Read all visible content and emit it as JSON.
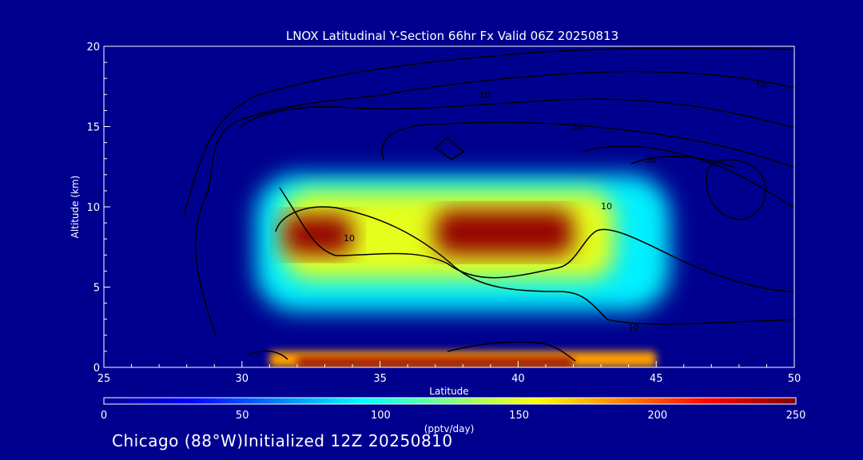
{
  "colors": {
    "background": "#00008f",
    "plot_field": "#00008f",
    "axis": "#ffffff",
    "contour": "#000000"
  },
  "chart_data": {
    "type": "heatmap",
    "title": "LNOX Latitudinal Y-Section 66hr  Fx Valid 06Z 20250813",
    "xlabel": "Latitude",
    "ylabel": "Altitude (km)",
    "xlim": [
      25,
      50
    ],
    "ylim": [
      0,
      20
    ],
    "x_ticks": [
      25,
      30,
      35,
      40,
      45,
      50
    ],
    "y_ticks": [
      0,
      5,
      10,
      15,
      20
    ],
    "colorbar": {
      "label": "(pptv/day)",
      "range": [
        0,
        250
      ],
      "ticks": [
        0,
        50,
        100,
        150,
        200,
        250
      ],
      "colormap": "jet"
    },
    "regions": [
      {
        "x_range": [
          30.5,
          45.5
        ],
        "y_range": [
          3.5,
          12.0
        ],
        "level": 90
      },
      {
        "x_range": [
          31.5,
          43.5
        ],
        "y_range": [
          5.5,
          11.0
        ],
        "level": 150
      },
      {
        "x_range": [
          31.5,
          34.0
        ],
        "y_range": [
          7.0,
          9.5
        ],
        "level": 245
      },
      {
        "x_range": [
          37.0,
          42.0
        ],
        "y_range": [
          7.0,
          9.8
        ],
        "level": 245
      },
      {
        "x_range": [
          31.0,
          45.0
        ],
        "y_range": [
          0.0,
          1.0
        ],
        "level": 180
      },
      {
        "x_range": [
          32.0,
          42.0
        ],
        "y_range": [
          0.1,
          0.6
        ],
        "level": 245
      }
    ],
    "contour_labels": [
      "10",
      "10",
      "20",
      "30",
      "10",
      "10",
      "10"
    ]
  },
  "footer": {
    "text": "Chicago (88°W)Initialized 12Z 20250810"
  }
}
